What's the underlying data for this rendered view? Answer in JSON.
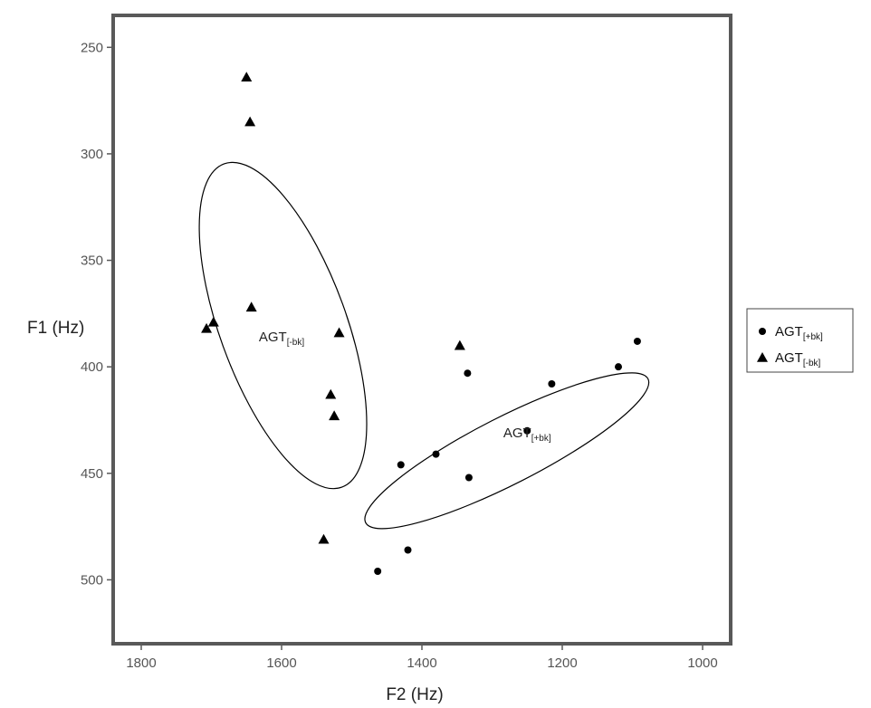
{
  "chart_data": {
    "type": "scatter",
    "xlabel": "F2 (Hz)",
    "ylabel": "F1 (Hz)",
    "xlim": [
      1840,
      960
    ],
    "ylim": [
      530,
      235
    ],
    "x_reversed": true,
    "y_reversed": true,
    "xticks": [
      1800,
      1600,
      1400,
      1200,
      1000
    ],
    "yticks": [
      250,
      300,
      350,
      400,
      450,
      500
    ],
    "grid": false,
    "legend_position": "right",
    "series": [
      {
        "name": "AGT",
        "name_sub": "[+bk]",
        "marker": "circle",
        "color": "#000000",
        "points": [
          {
            "x": 1093,
            "y": 388
          },
          {
            "x": 1120,
            "y": 400
          },
          {
            "x": 1215,
            "y": 408
          },
          {
            "x": 1250,
            "y": 430
          },
          {
            "x": 1335,
            "y": 403
          },
          {
            "x": 1380,
            "y": 441
          },
          {
            "x": 1430,
            "y": 446
          },
          {
            "x": 1333,
            "y": 452
          },
          {
            "x": 1420,
            "y": 486
          },
          {
            "x": 1463,
            "y": 496
          }
        ]
      },
      {
        "name": "AGT",
        "name_sub": "[-bk]",
        "marker": "triangle",
        "color": "#000000",
        "points": [
          {
            "x": 1650,
            "y": 264
          },
          {
            "x": 1645,
            "y": 285
          },
          {
            "x": 1643,
            "y": 372
          },
          {
            "x": 1697,
            "y": 379
          },
          {
            "x": 1707,
            "y": 382
          },
          {
            "x": 1518,
            "y": 384
          },
          {
            "x": 1346,
            "y": 390
          },
          {
            "x": 1530,
            "y": 413
          },
          {
            "x": 1525,
            "y": 423
          },
          {
            "x": 1540,
            "y": 481
          }
        ]
      }
    ],
    "ellipses": [
      {
        "series": 1,
        "cx": 1598,
        "cy": 380.6,
        "rx": 70,
        "ry": 190,
        "angle": -20,
        "color": "#000000"
      },
      {
        "series": 0,
        "cx": 1279,
        "cy": 439.4,
        "rx": 175,
        "ry": 37,
        "angle": -27,
        "color": "#000000"
      }
    ],
    "annotations": [
      {
        "text": "AGT",
        "sub": "[-bk]",
        "x": 1600,
        "y": 386
      },
      {
        "text": "AGT",
        "sub": "[+bk]",
        "x": 1250,
        "y": 431
      }
    ]
  }
}
